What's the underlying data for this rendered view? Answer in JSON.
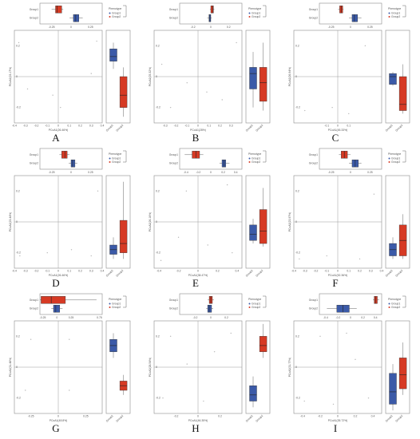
{
  "figure": {
    "n_rows": 3,
    "n_cols": 3
  },
  "legend": {
    "title": "Phenotype",
    "entries": [
      "Group1",
      "Group2"
    ]
  },
  "colors": {
    "group1": "#3b5aa8",
    "group2": "#d63a24",
    "axis": "#8a8a8a",
    "zero_line": "#9a9a9a",
    "point": "#b8b8b8",
    "text": "#555555"
  },
  "chart_data": [
    {
      "panel": "A",
      "type": "scatter",
      "xlabel": "PCoA1(26.46%)",
      "ylabel": "PCoA2(23.17%)",
      "xlim": [
        -0.4,
        0.4
      ],
      "ylim": [
        -0.3,
        0.3
      ],
      "xticks": [
        -0.4,
        -0.3,
        -0.2,
        -0.1,
        0,
        0.1,
        0.2,
        0.3,
        0.4
      ],
      "yticks": [
        -0.2,
        0,
        0.2
      ],
      "points": [
        [
          -0.36,
          0.22
        ],
        [
          0.35,
          0.23
        ],
        [
          -0.28,
          -0.08
        ],
        [
          -0.05,
          -0.12
        ],
        [
          0.02,
          -0.2
        ],
        [
          0.3,
          0.02
        ]
      ],
      "top_boxplot": {
        "ticks": [
          -0.25,
          0.0,
          0.25
        ],
        "xlim": [
          -0.4,
          0.4
        ],
        "series": [
          {
            "q1": -0.2,
            "median": -0.18,
            "q3": -0.12,
            "min": -0.25,
            "max": -0.1
          },
          {
            "q1": 0.03,
            "median": 0.06,
            "q3": 0.1,
            "min": -0.02,
            "max": 0.15
          }
        ]
      },
      "side_boxplot": {
        "ylim": [
          -0.3,
          0.3
        ],
        "series": [
          {
            "q1": 0.1,
            "median": 0.13,
            "q3": 0.18,
            "min": 0.05,
            "max": 0.22
          },
          {
            "q1": -0.2,
            "median": -0.12,
            "q3": 0.0,
            "min": -0.26,
            "max": 0.06
          }
        ]
      }
    },
    {
      "panel": "B",
      "type": "scatter",
      "xlabel": "PCoA1(28%)",
      "ylabel": "PCoA2(25.32%)",
      "xlim": [
        -0.4,
        0.4
      ],
      "ylim": [
        -0.3,
        0.3
      ],
      "xticks": [
        -0.3,
        -0.2,
        -0.1,
        0,
        0.1,
        0.2,
        0.3
      ],
      "yticks": [
        -0.2,
        0,
        0.2
      ],
      "points": [
        [
          -0.33,
          0.08
        ],
        [
          0.35,
          0.22
        ],
        [
          -0.1,
          -0.04
        ],
        [
          0.08,
          -0.1
        ],
        [
          0.22,
          -0.15
        ],
        [
          -0.25,
          -0.2
        ]
      ],
      "top_boxplot": {
        "ticks": [
          -0.2,
          0.0,
          0.2
        ],
        "xlim": [
          -0.35,
          0.35
        ],
        "series": [
          {
            "q1": 0.0,
            "median": 0.02,
            "q3": 0.03,
            "min": -0.01,
            "max": 0.04
          },
          {
            "q1": -0.02,
            "median": -0.01,
            "q3": 0.0,
            "min": -0.04,
            "max": 0.01
          }
        ]
      },
      "side_boxplot": {
        "ylim": [
          -0.3,
          0.3
        ],
        "series": [
          {
            "q1": -0.08,
            "median": 0.02,
            "q3": 0.06,
            "min": -0.2,
            "max": 0.16
          },
          {
            "q1": -0.16,
            "median": -0.04,
            "q3": 0.06,
            "min": -0.22,
            "max": 0.22
          }
        ]
      }
    },
    {
      "panel": "C",
      "type": "scatter",
      "xlabel": "PCoA1(45.33%)",
      "ylabel": "PCoA2(26.94%)",
      "xlim": [
        -0.4,
        0.4
      ],
      "ylim": [
        -0.3,
        0.3
      ],
      "xticks": [
        -0.1,
        0,
        0.1
      ],
      "yticks": [
        -0.2,
        0,
        0.2
      ],
      "points": [
        [
          -0.3,
          -0.22
        ],
        [
          0.25,
          0.2
        ],
        [
          -0.05,
          -0.2
        ],
        [
          0.1,
          -0.24
        ]
      ],
      "top_boxplot": {
        "ticks": [
          -0.25,
          0.0,
          0.25
        ],
        "xlim": [
          -0.4,
          0.4
        ],
        "series": [
          {
            "q1": -0.14,
            "median": -0.12,
            "q3": -0.1,
            "min": -0.16,
            "max": -0.09
          },
          {
            "q1": 0.02,
            "median": 0.05,
            "q3": 0.09,
            "min": -0.02,
            "max": 0.14
          }
        ]
      },
      "side_boxplot": {
        "ylim": [
          -0.3,
          0.3
        ],
        "series": [
          {
            "q1": -0.05,
            "median": 0.0,
            "q3": 0.02,
            "min": -0.06,
            "max": 0.03
          },
          {
            "q1": -0.22,
            "median": -0.18,
            "q3": 0.0,
            "min": -0.24,
            "max": 0.08
          }
        ]
      }
    },
    {
      "panel": "D",
      "type": "scatter",
      "xlabel": "PCoA1(26.46%)",
      "ylabel": "PCoA2(23.44%)",
      "xlim": [
        -0.4,
        0.4
      ],
      "ylim": [
        -0.3,
        0.3
      ],
      "xticks": [
        -0.4,
        -0.3,
        -0.2,
        -0.1,
        0,
        0.1,
        0.2,
        0.3,
        0.4
      ],
      "yticks": [
        -0.2,
        0,
        0.2
      ],
      "points": [
        [
          -0.35,
          -0.22
        ],
        [
          -0.1,
          -0.2
        ],
        [
          0.12,
          -0.18
        ],
        [
          0.3,
          -0.22
        ],
        [
          0.36,
          0.2
        ]
      ],
      "top_boxplot": {
        "ticks": [
          -0.25,
          0.0,
          0.25
        ],
        "xlim": [
          -0.4,
          0.4
        ],
        "series": [
          {
            "q1": -0.12,
            "median": -0.08,
            "q3": -0.05,
            "min": -0.15,
            "max": -0.02
          },
          {
            "q1": 0.0,
            "median": 0.02,
            "q3": 0.05,
            "min": -0.03,
            "max": 0.08
          }
        ]
      },
      "side_boxplot": {
        "ylim": [
          -0.3,
          0.3
        ],
        "series": [
          {
            "q1": -0.21,
            "median": -0.18,
            "q3": -0.15,
            "min": -0.24,
            "max": -0.1
          },
          {
            "q1": -0.2,
            "median": -0.14,
            "q3": 0.01,
            "min": -0.24,
            "max": 0.26
          }
        ]
      }
    },
    {
      "panel": "E",
      "type": "scatter",
      "xlabel": "PCoA1(38.47%)",
      "ylabel": "PCoA2(26.16%)",
      "xlim": [
        -0.45,
        0.45
      ],
      "ylim": [
        -0.3,
        0.3
      ],
      "xticks": [
        -0.4,
        -0.2,
        0,
        0.2,
        0.4
      ],
      "yticks": [
        -0.2,
        0,
        0.2
      ],
      "points": [
        [
          -0.38,
          -0.25
        ],
        [
          -0.12,
          0.2
        ],
        [
          0.3,
          0.24
        ],
        [
          -0.2,
          -0.1
        ],
        [
          0.1,
          -0.15
        ],
        [
          0.35,
          -0.2
        ]
      ],
      "top_boxplot": {
        "ticks": [
          -0.4,
          -0.2,
          0.0,
          0.2,
          0.4
        ],
        "xlim": [
          -0.5,
          0.5
        ],
        "series": [
          {
            "q1": -0.3,
            "median": -0.24,
            "q3": -0.18,
            "min": -0.42,
            "max": -0.12
          },
          {
            "q1": 0.18,
            "median": 0.21,
            "q3": 0.24,
            "min": 0.14,
            "max": 0.3
          }
        ]
      },
      "side_boxplot": {
        "ylim": [
          -0.3,
          0.3
        ],
        "series": [
          {
            "q1": -0.12,
            "median": -0.08,
            "q3": -0.02,
            "min": -0.14,
            "max": 0.02
          },
          {
            "q1": -0.14,
            "median": -0.06,
            "q3": 0.08,
            "min": -0.16,
            "max": 0.22
          }
        ]
      }
    },
    {
      "panel": "F",
      "type": "scatter",
      "xlabel": "PCoA1(52.36%)",
      "ylabel": "PCoA2(23.97%)",
      "xlim": [
        -0.4,
        0.4
      ],
      "ylim": [
        -0.3,
        0.3
      ],
      "xticks": [
        -0.4,
        -0.3,
        -0.2,
        -0.1,
        0,
        0.1,
        0.2,
        0.3,
        0.4
      ],
      "yticks": [
        -0.2,
        0,
        0.2
      ],
      "points": [
        [
          -0.35,
          -0.24
        ],
        [
          -0.1,
          -0.22
        ],
        [
          0.2,
          -0.24
        ],
        [
          0.33,
          0.18
        ]
      ],
      "top_boxplot": {
        "ticks": [
          -0.25,
          0.0,
          0.25
        ],
        "xlim": [
          -0.4,
          0.4
        ],
        "series": [
          {
            "q1": -0.12,
            "median": -0.08,
            "q3": -0.04,
            "min": -0.15,
            "max": 0.0
          },
          {
            "q1": 0.02,
            "median": 0.06,
            "q3": 0.1,
            "min": -0.02,
            "max": 0.14
          }
        ]
      },
      "side_boxplot": {
        "ylim": [
          -0.3,
          0.3
        ],
        "series": [
          {
            "q1": -0.22,
            "median": -0.18,
            "q3": -0.14,
            "min": -0.24,
            "max": -0.1
          },
          {
            "q1": -0.22,
            "median": -0.12,
            "q3": -0.02,
            "min": -0.24,
            "max": 0.05
          }
        ]
      }
    },
    {
      "panel": "G",
      "type": "scatter",
      "xlabel": "PCoA1(48.8%)",
      "ylabel": "PCoA2(31.48%)",
      "xlim": [
        -0.4,
        0.4
      ],
      "ylim": [
        -0.3,
        0.3
      ],
      "xticks": [
        -0.25,
        0,
        0.25
      ],
      "yticks": [
        -0.2,
        0,
        0.2
      ],
      "points": [
        [
          -0.25,
          0.18
        ],
        [
          -0.3,
          -0.15
        ],
        [
          0.1,
          0.18
        ],
        [
          0.1,
          -0.15
        ]
      ],
      "top_boxplot": {
        "ticks": [
          -0.25,
          0.0,
          0.25,
          0.75
        ],
        "xlim": [
          -0.3,
          0.8
        ],
        "series": [
          {
            "q1": -0.28,
            "median": -0.1,
            "q3": 0.15,
            "min": -0.3,
            "max": 0.7
          },
          {
            "q1": -0.06,
            "median": -0.02,
            "q3": 0.05,
            "min": -0.1,
            "max": 0.1
          }
        ]
      },
      "side_boxplot": {
        "ylim": [
          -0.3,
          0.3
        ],
        "series": [
          {
            "q1": 0.1,
            "median": 0.14,
            "q3": 0.18,
            "min": 0.06,
            "max": 0.22
          },
          {
            "q1": -0.15,
            "median": -0.12,
            "q3": -0.09,
            "min": -0.18,
            "max": -0.05
          }
        ]
      }
    },
    {
      "panel": "H",
      "type": "scatter",
      "xlabel": "PCoA1(46.35%)",
      "ylabel": "PCoA2(28.54%)",
      "xlim": [
        -0.4,
        0.4
      ],
      "ylim": [
        -0.3,
        0.3
      ],
      "xticks": [
        -0.2,
        0,
        0.2
      ],
      "yticks": [
        -0.2,
        0,
        0.2
      ],
      "points": [
        [
          -0.25,
          0.2
        ],
        [
          -0.1,
          0.02
        ],
        [
          0.05,
          -0.22
        ],
        [
          0.15,
          0.1
        ],
        [
          0.3,
          0.22
        ],
        [
          -0.32,
          -0.2
        ]
      ],
      "top_boxplot": {
        "ticks": [
          -0.2,
          0.0,
          0.2
        ],
        "xlim": [
          -0.4,
          0.4
        ],
        "series": [
          {
            "q1": -0.02,
            "median": 0.0,
            "q3": 0.02,
            "min": -0.04,
            "max": 0.04
          },
          {
            "q1": -0.04,
            "median": -0.02,
            "q3": 0.01,
            "min": -0.06,
            "max": 0.03
          }
        ]
      },
      "side_boxplot": {
        "ylim": [
          -0.3,
          0.3
        ],
        "series": [
          {
            "q1": -0.22,
            "median": -0.18,
            "q3": -0.12,
            "min": -0.26,
            "max": -0.06
          },
          {
            "q1": 0.1,
            "median": 0.14,
            "q3": 0.2,
            "min": 0.06,
            "max": 0.28
          }
        ]
      }
    },
    {
      "panel": "I",
      "type": "scatter",
      "xlabel": "PCoA1(35.72%)",
      "ylabel": "PCoA2(31.77%)",
      "xlim": [
        -0.5,
        0.5
      ],
      "ylim": [
        -0.3,
        0.3
      ],
      "xticks": [
        -0.4,
        -0.2,
        0,
        0.2,
        0.4
      ],
      "yticks": [
        -0.2,
        0,
        0.2
      ],
      "points": [
        [
          -0.38,
          -0.22
        ],
        [
          -0.2,
          0.2
        ],
        [
          0.1,
          0.22
        ],
        [
          0.35,
          -0.2
        ],
        [
          0.2,
          0.05
        ],
        [
          -0.05,
          -0.24
        ]
      ],
      "top_boxplot": {
        "ticks": [
          -0.4,
          -0.2,
          0.0,
          0.2,
          0.4
        ],
        "xlim": [
          -0.5,
          0.5
        ],
        "series": [
          {
            "q1": 0.38,
            "median": 0.4,
            "q3": 0.43,
            "min": 0.36,
            "max": 0.46
          },
          {
            "q1": -0.22,
            "median": -0.12,
            "q3": -0.02,
            "min": -0.38,
            "max": 0.1
          }
        ]
      },
      "side_boxplot": {
        "ylim": [
          -0.3,
          0.3
        ],
        "series": [
          {
            "q1": -0.24,
            "median": -0.16,
            "q3": -0.04,
            "min": -0.28,
            "max": 0.02
          },
          {
            "q1": -0.14,
            "median": -0.05,
            "q3": 0.06,
            "min": -0.18,
            "max": 0.16
          }
        ]
      }
    }
  ]
}
